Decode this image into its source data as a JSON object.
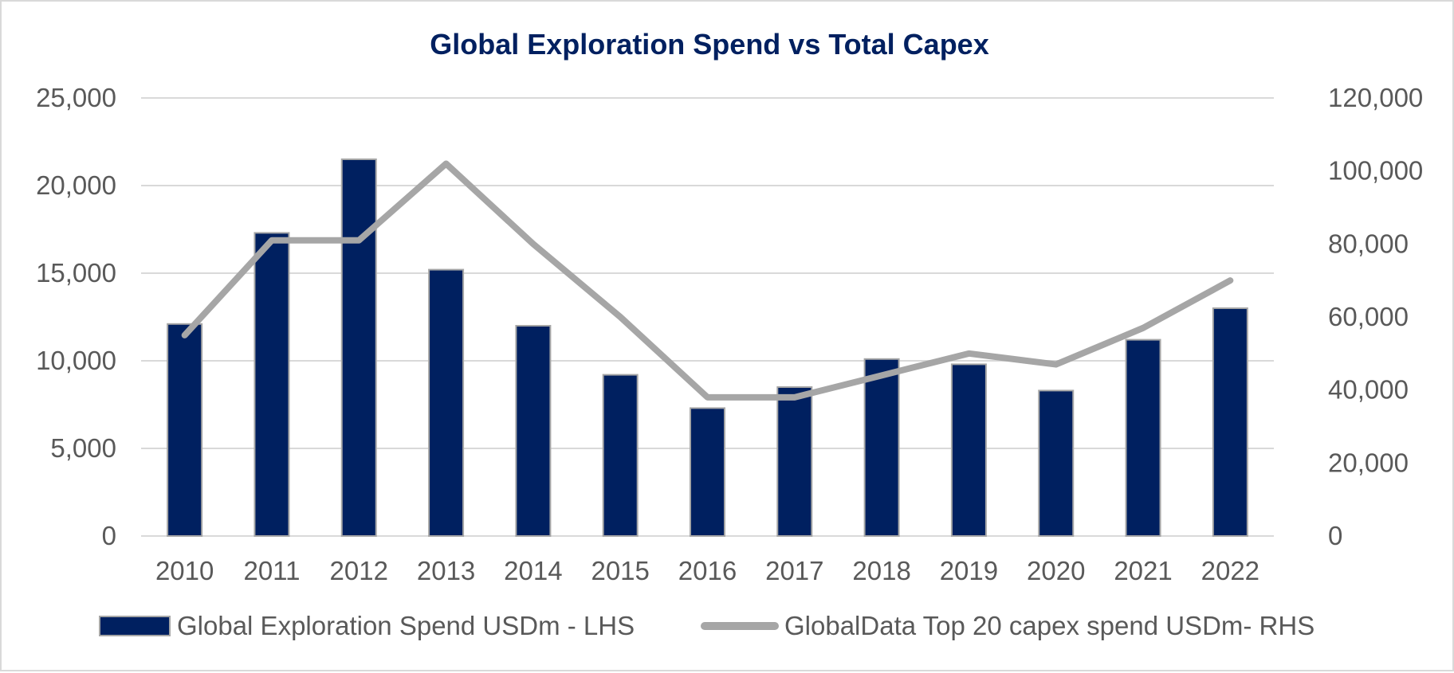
{
  "chart_data": {
    "type": "bar",
    "title": "Global Exploration Spend vs Total Capex",
    "categories": [
      "2010",
      "2011",
      "2012",
      "2013",
      "2014",
      "2015",
      "2016",
      "2017",
      "2018",
      "2019",
      "2020",
      "2021",
      "2022"
    ],
    "series": [
      {
        "name": "Global Exploration Spend USDm - LHS",
        "type": "bar",
        "axis": "left",
        "color": "#002060",
        "values": [
          12100,
          17300,
          21500,
          15200,
          12000,
          9200,
          7300,
          8500,
          10100,
          9800,
          8300,
          11200,
          13000
        ]
      },
      {
        "name": "GlobalData Top 20 capex spend USDm- RHS",
        "type": "line",
        "axis": "right",
        "color": "#a6a6a6",
        "values": [
          55000,
          81000,
          81000,
          102000,
          80000,
          60000,
          38000,
          38000,
          44000,
          50000,
          47000,
          57000,
          70000
        ]
      }
    ],
    "y_left": {
      "ylim": [
        0,
        25000
      ],
      "ticks": [
        "0",
        "5,000",
        "10,000",
        "15,000",
        "20,000",
        "25,000"
      ]
    },
    "y_right": {
      "ylim": [
        0,
        120000
      ],
      "ticks": [
        "0",
        "20,000",
        "40,000",
        "60,000",
        "80,000",
        "100,000",
        "120,000"
      ]
    },
    "grid": true,
    "legend": "bottom",
    "title_color": "#002060",
    "grid_color": "#d9d9d9"
  }
}
